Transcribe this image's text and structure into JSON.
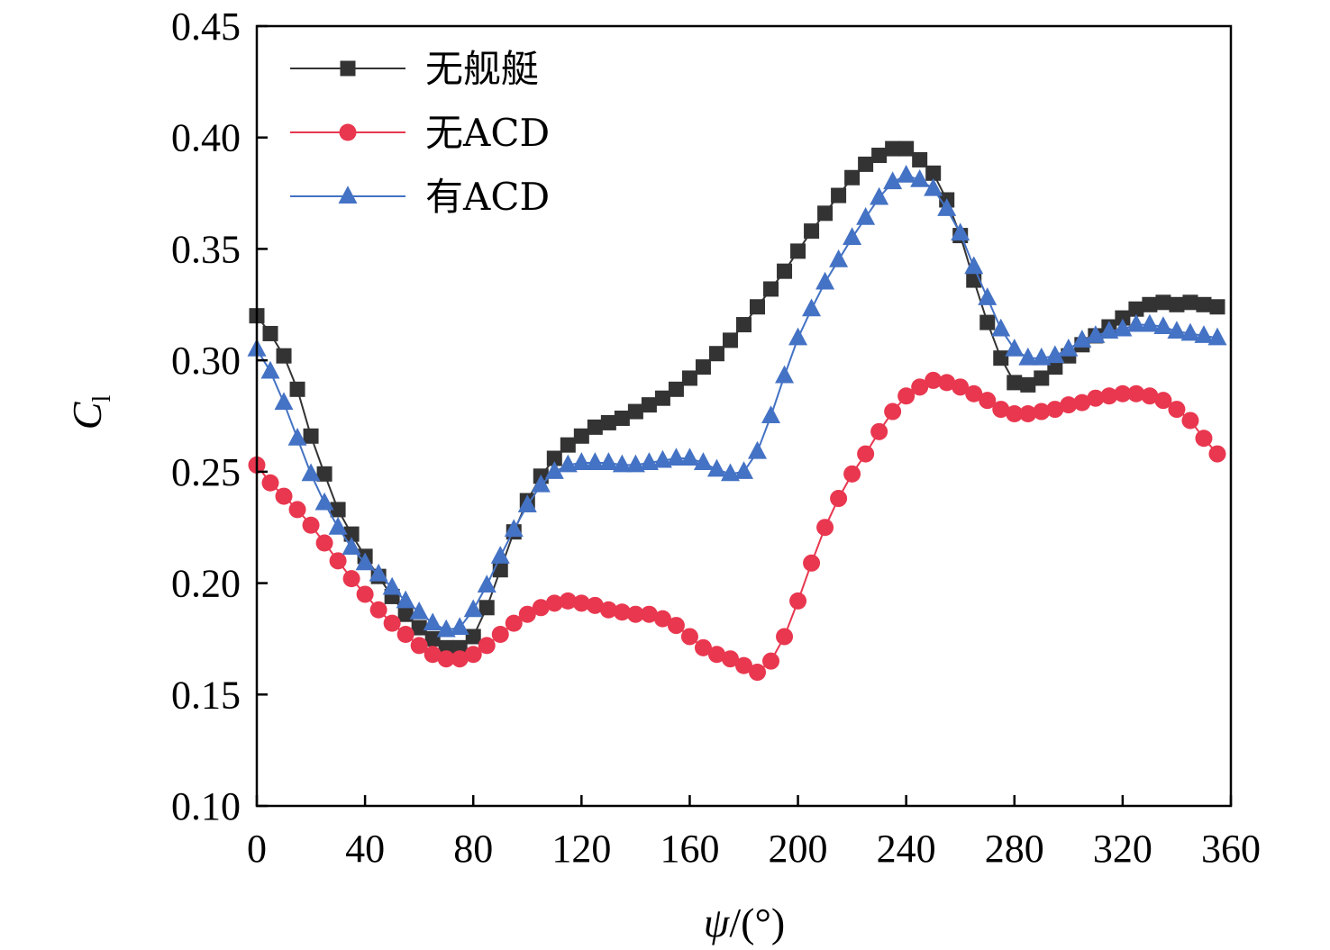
{
  "chart_data": {
    "type": "line",
    "xlabel": "ψ/(°)",
    "xlabel_var": "ψ",
    "xlabel_unit": "/(°)",
    "ylabel": "Cl",
    "ylabel_main": "C",
    "ylabel_sub": "l",
    "xlim": [
      0,
      360
    ],
    "ylim": [
      0.1,
      0.45
    ],
    "xticks": [
      0,
      40,
      80,
      120,
      160,
      200,
      240,
      280,
      320,
      360
    ],
    "xtick_labels": [
      "0",
      "40",
      "80",
      "120",
      "160",
      "200",
      "240",
      "280",
      "320",
      "360"
    ],
    "yticks": [
      0.1,
      0.15,
      0.2,
      0.25,
      0.3,
      0.35,
      0.4,
      0.45
    ],
    "ytick_labels": [
      "0.10",
      "0.15",
      "0.20",
      "0.25",
      "0.30",
      "0.35",
      "0.40",
      "0.45"
    ],
    "grid": false,
    "legend_position": "top-left",
    "x": [
      0,
      5,
      10,
      15,
      20,
      25,
      30,
      35,
      40,
      45,
      50,
      55,
      60,
      65,
      70,
      75,
      80,
      85,
      90,
      95,
      100,
      105,
      110,
      115,
      120,
      125,
      130,
      135,
      140,
      145,
      150,
      155,
      160,
      165,
      170,
      175,
      180,
      185,
      190,
      195,
      200,
      205,
      210,
      215,
      220,
      225,
      230,
      235,
      240,
      245,
      250,
      255,
      260,
      265,
      270,
      275,
      280,
      285,
      290,
      295,
      300,
      305,
      310,
      315,
      320,
      325,
      330,
      335,
      340,
      345,
      350,
      355
    ],
    "series": [
      {
        "name": "无舰艇",
        "color": "#333333",
        "marker": "square",
        "values": [
          0.32,
          0.312,
          0.302,
          0.287,
          0.266,
          0.249,
          0.233,
          0.222,
          0.212,
          0.203,
          0.194,
          0.186,
          0.18,
          0.175,
          0.171,
          0.171,
          0.176,
          0.189,
          0.206,
          0.223,
          0.237,
          0.248,
          0.256,
          0.262,
          0.266,
          0.27,
          0.272,
          0.274,
          0.277,
          0.28,
          0.283,
          0.287,
          0.292,
          0.297,
          0.303,
          0.309,
          0.316,
          0.324,
          0.332,
          0.34,
          0.349,
          0.358,
          0.366,
          0.374,
          0.382,
          0.388,
          0.392,
          0.395,
          0.395,
          0.39,
          0.384,
          0.372,
          0.356,
          0.336,
          0.317,
          0.301,
          0.29,
          0.289,
          0.292,
          0.297,
          0.302,
          0.307,
          0.311,
          0.315,
          0.319,
          0.323,
          0.325,
          0.326,
          0.325,
          0.326,
          0.325,
          0.324
        ]
      },
      {
        "name": "无ACD",
        "color": "#e8374f",
        "marker": "circle",
        "values": [
          0.253,
          0.245,
          0.239,
          0.233,
          0.226,
          0.218,
          0.21,
          0.202,
          0.195,
          0.188,
          0.182,
          0.177,
          0.172,
          0.168,
          0.166,
          0.166,
          0.168,
          0.172,
          0.177,
          0.182,
          0.186,
          0.189,
          0.191,
          0.192,
          0.191,
          0.19,
          0.188,
          0.187,
          0.186,
          0.186,
          0.184,
          0.181,
          0.176,
          0.171,
          0.168,
          0.166,
          0.163,
          0.16,
          0.165,
          0.176,
          0.192,
          0.209,
          0.225,
          0.238,
          0.249,
          0.258,
          0.268,
          0.277,
          0.284,
          0.288,
          0.291,
          0.29,
          0.288,
          0.285,
          0.282,
          0.278,
          0.276,
          0.276,
          0.277,
          0.278,
          0.28,
          0.281,
          0.283,
          0.284,
          0.285,
          0.285,
          0.284,
          0.282,
          0.278,
          0.273,
          0.265,
          0.258
        ]
      },
      {
        "name": "有ACD",
        "color": "#4472c4",
        "marker": "triangle",
        "values": [
          0.305,
          0.295,
          0.281,
          0.265,
          0.249,
          0.236,
          0.225,
          0.216,
          0.209,
          0.204,
          0.198,
          0.192,
          0.187,
          0.182,
          0.179,
          0.18,
          0.188,
          0.199,
          0.212,
          0.224,
          0.235,
          0.244,
          0.25,
          0.253,
          0.254,
          0.254,
          0.254,
          0.253,
          0.253,
          0.254,
          0.255,
          0.256,
          0.256,
          0.254,
          0.251,
          0.249,
          0.25,
          0.259,
          0.275,
          0.293,
          0.31,
          0.323,
          0.335,
          0.345,
          0.355,
          0.364,
          0.373,
          0.38,
          0.383,
          0.381,
          0.377,
          0.368,
          0.357,
          0.342,
          0.328,
          0.314,
          0.305,
          0.301,
          0.301,
          0.302,
          0.305,
          0.309,
          0.311,
          0.313,
          0.314,
          0.316,
          0.316,
          0.315,
          0.313,
          0.312,
          0.311,
          0.31
        ]
      }
    ]
  }
}
